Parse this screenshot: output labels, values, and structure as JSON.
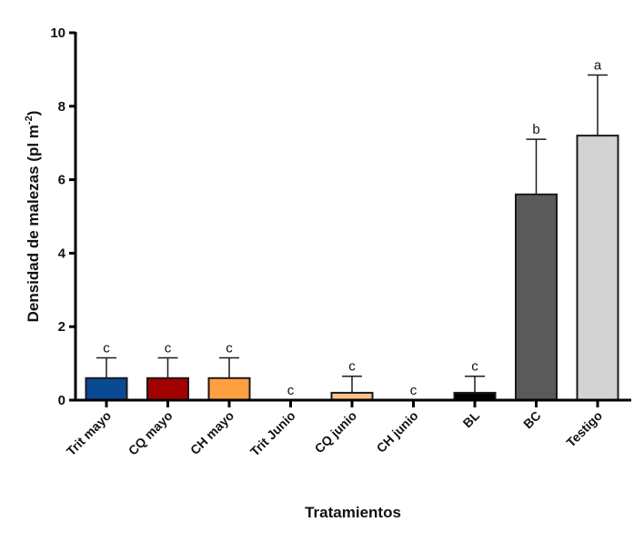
{
  "chart_data": {
    "type": "bar",
    "title": "",
    "xlabel": "Tratamientos",
    "ylabel_main": "Densidad de malezas (pl m",
    "ylabel_sup": "-2",
    "ylabel_close": ")",
    "ylabel": "Densidad de malezas (pl m-2)",
    "ylim": [
      0,
      10
    ],
    "yticks": [
      0,
      2,
      4,
      6,
      8,
      10
    ],
    "grid": false,
    "categories": [
      "Trit mayo",
      "CQ mayo",
      "CH mayo",
      "Trit Junio",
      "CQ junio",
      "CH junio",
      "BL",
      "BC",
      "Testigo"
    ],
    "values": [
      0.6,
      0.6,
      0.6,
      0.0,
      0.2,
      0.0,
      0.2,
      5.6,
      7.2
    ],
    "error_upper": [
      0.55,
      0.55,
      0.55,
      0.0,
      0.45,
      0.0,
      0.45,
      1.5,
      1.65
    ],
    "significance_letters": [
      "c",
      "c",
      "c",
      "c",
      "c",
      "c",
      "c",
      "b",
      "a"
    ],
    "colors": [
      "#0a4a94",
      "#a30000",
      "#ffa040",
      "#ffffff",
      "#ffc28a",
      "#ffffff",
      "#000000",
      "#5a5a5a",
      "#d3d3d3"
    ]
  }
}
